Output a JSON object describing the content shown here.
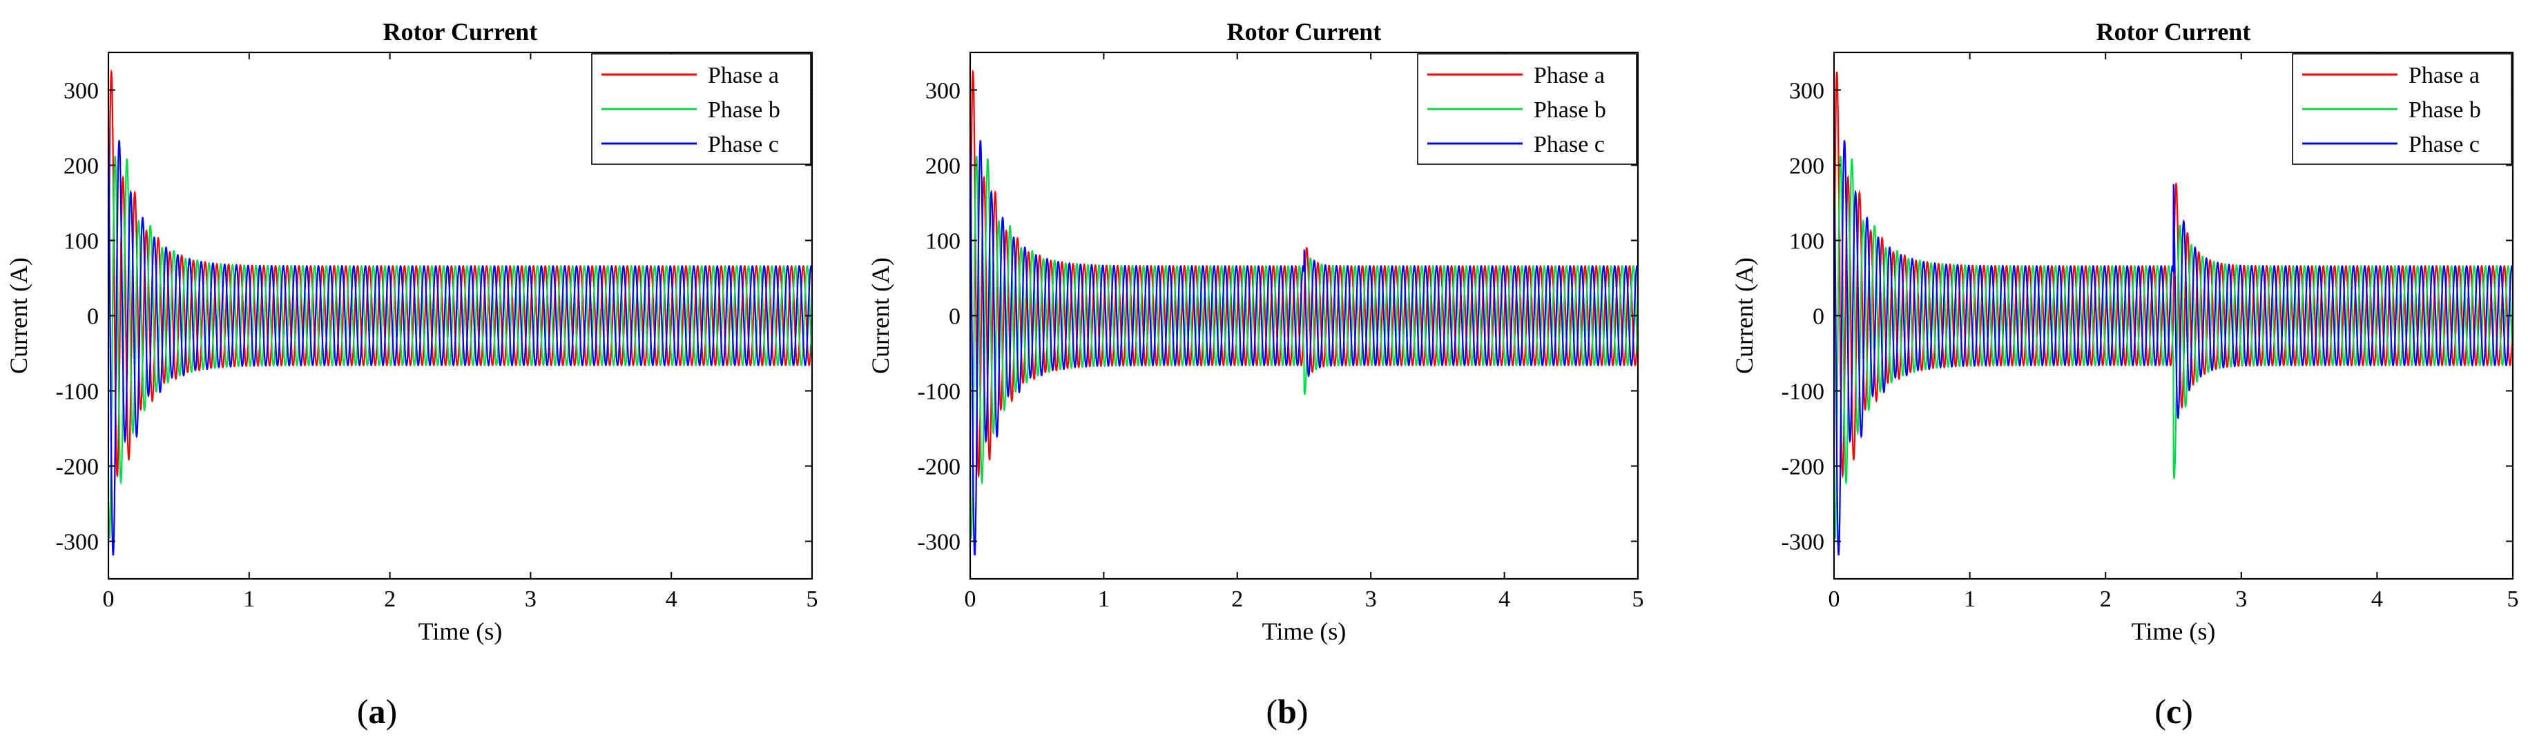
{
  "figure": {
    "caption_labels": [
      "(a)",
      "(b)",
      "(c)"
    ]
  },
  "chart_data": [
    {
      "type": "line",
      "title": "Rotor Current",
      "xlabel": "Time (s)",
      "ylabel": "Current (A)",
      "xlim": [
        0,
        5
      ],
      "ylim": [
        -350,
        350
      ],
      "xticks": [
        0,
        1,
        2,
        3,
        4,
        5
      ],
      "yticks": [
        -300,
        -200,
        -100,
        0,
        100,
        200,
        300
      ],
      "grid": false,
      "legend": "top-right",
      "frequency_hz": 12,
      "steady_amplitude_A": 66,
      "startup_peak_A": 315,
      "startup_settle_s": 0.5,
      "disturbance": null,
      "series": [
        {
          "name": "Phase a",
          "color": "#ff0000",
          "phase_deg": 0
        },
        {
          "name": "Phase b",
          "color": "#00dd44",
          "phase_deg": -120
        },
        {
          "name": "Phase c",
          "color": "#0000ff",
          "phase_deg": 120
        }
      ]
    },
    {
      "type": "line",
      "title": "Rotor Current",
      "xlabel": "Time (s)",
      "ylabel": "Current (A)",
      "xlim": [
        0,
        5
      ],
      "ylim": [
        -350,
        350
      ],
      "xticks": [
        0,
        1,
        2,
        3,
        4,
        5
      ],
      "yticks": [
        -300,
        -200,
        -100,
        0,
        100,
        200,
        300
      ],
      "grid": false,
      "legend": "top-right",
      "frequency_hz": 12,
      "steady_amplitude_A": 66,
      "startup_peak_A": 315,
      "startup_settle_s": 0.5,
      "disturbance": {
        "time_s": 2.5,
        "peak_A": 98,
        "trough_A": -95,
        "duration_s": 0.25
      },
      "series": [
        {
          "name": "Phase a",
          "color": "#ff0000",
          "phase_deg": 0
        },
        {
          "name": "Phase b",
          "color": "#00dd44",
          "phase_deg": -120
        },
        {
          "name": "Phase c",
          "color": "#0000ff",
          "phase_deg": 120
        }
      ]
    },
    {
      "type": "line",
      "title": "Rotor Current",
      "xlabel": "Time (s)",
      "ylabel": "Current (A)",
      "xlim": [
        0,
        5
      ],
      "ylim": [
        -350,
        350
      ],
      "xticks": [
        0,
        1,
        2,
        3,
        4,
        5
      ],
      "yticks": [
        -300,
        -200,
        -100,
        0,
        100,
        200,
        300
      ],
      "grid": false,
      "legend": "top-right",
      "frequency_hz": 12,
      "steady_amplitude_A": 66,
      "startup_peak_A": 315,
      "startup_settle_s": 0.5,
      "disturbance": {
        "time_s": 2.5,
        "peak_A": 182,
        "trough_A": -148,
        "duration_s": 0.5
      },
      "series": [
        {
          "name": "Phase a",
          "color": "#ff0000",
          "phase_deg": 0
        },
        {
          "name": "Phase b",
          "color": "#00dd44",
          "phase_deg": -120
        },
        {
          "name": "Phase c",
          "color": "#0000ff",
          "phase_deg": 120
        }
      ]
    }
  ]
}
